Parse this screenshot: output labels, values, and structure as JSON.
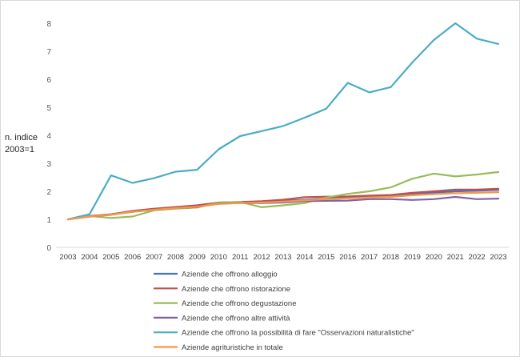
{
  "chart_data": {
    "type": "line",
    "ylabel_lines": [
      "n. indice",
      "2003=1"
    ],
    "ylim": [
      0,
      8
    ],
    "yticks": [
      0,
      1,
      2,
      3,
      4,
      5,
      6,
      7,
      8
    ],
    "grid": false,
    "legend_position": "bottom",
    "x": [
      "2003",
      "2004",
      "2005",
      "2006",
      "2007",
      "2008",
      "2009",
      "2010",
      "2011",
      "2012",
      "2013",
      "2014",
      "2015",
      "2016",
      "2017",
      "2018",
      "2019",
      "2020",
      "2021",
      "2022",
      "2023"
    ],
    "series": [
      {
        "name": "Aziende che offrono alloggio",
        "color": "#4472c4",
        "values": [
          1,
          1.1,
          1.18,
          1.27,
          1.35,
          1.42,
          1.48,
          1.58,
          1.6,
          1.62,
          1.66,
          1.7,
          1.75,
          1.78,
          1.8,
          1.82,
          1.9,
          1.95,
          2.0,
          2.02,
          2.05
        ]
      },
      {
        "name": "Aziende che offrono ristorazione",
        "color": "#c0504d",
        "values": [
          1,
          1.12,
          1.18,
          1.3,
          1.38,
          1.44,
          1.5,
          1.6,
          1.62,
          1.65,
          1.7,
          1.79,
          1.81,
          1.82,
          1.85,
          1.87,
          1.95,
          2.0,
          2.06,
          2.06,
          2.09
        ]
      },
      {
        "name": "Aziende che offrono degustazione",
        "color": "#9bbb59",
        "values": [
          1,
          1.12,
          1.05,
          1.1,
          1.32,
          1.38,
          1.42,
          1.6,
          1.62,
          1.43,
          1.5,
          1.58,
          1.78,
          1.91,
          2.0,
          2.14,
          2.45,
          2.63,
          2.53,
          2.6,
          2.69
        ]
      },
      {
        "name": "Aziende che offrono altre attività",
        "color": "#8064a2",
        "values": [
          1,
          1.1,
          1.16,
          1.28,
          1.34,
          1.4,
          1.44,
          1.56,
          1.58,
          1.58,
          1.6,
          1.65,
          1.66,
          1.67,
          1.72,
          1.72,
          1.69,
          1.72,
          1.8,
          1.72,
          1.74
        ]
      },
      {
        "name": "Aziende che offrono la possibilità di fare \"Osservazioni naturalistiche\"",
        "color": "#4bacc6",
        "values": [
          1,
          1.18,
          2.57,
          2.3,
          2.47,
          2.7,
          2.77,
          3.5,
          3.97,
          4.15,
          4.33,
          4.63,
          4.95,
          5.87,
          5.53,
          5.72,
          6.6,
          7.4,
          8.0,
          7.45,
          7.26
        ]
      },
      {
        "name": "Aziende agrituristiche in totale",
        "color": "#f79646",
        "values": [
          1,
          1.1,
          1.17,
          1.27,
          1.34,
          1.4,
          1.45,
          1.55,
          1.58,
          1.6,
          1.63,
          1.68,
          1.72,
          1.75,
          1.78,
          1.8,
          1.86,
          1.9,
          1.93,
          1.95,
          1.97
        ]
      }
    ]
  }
}
